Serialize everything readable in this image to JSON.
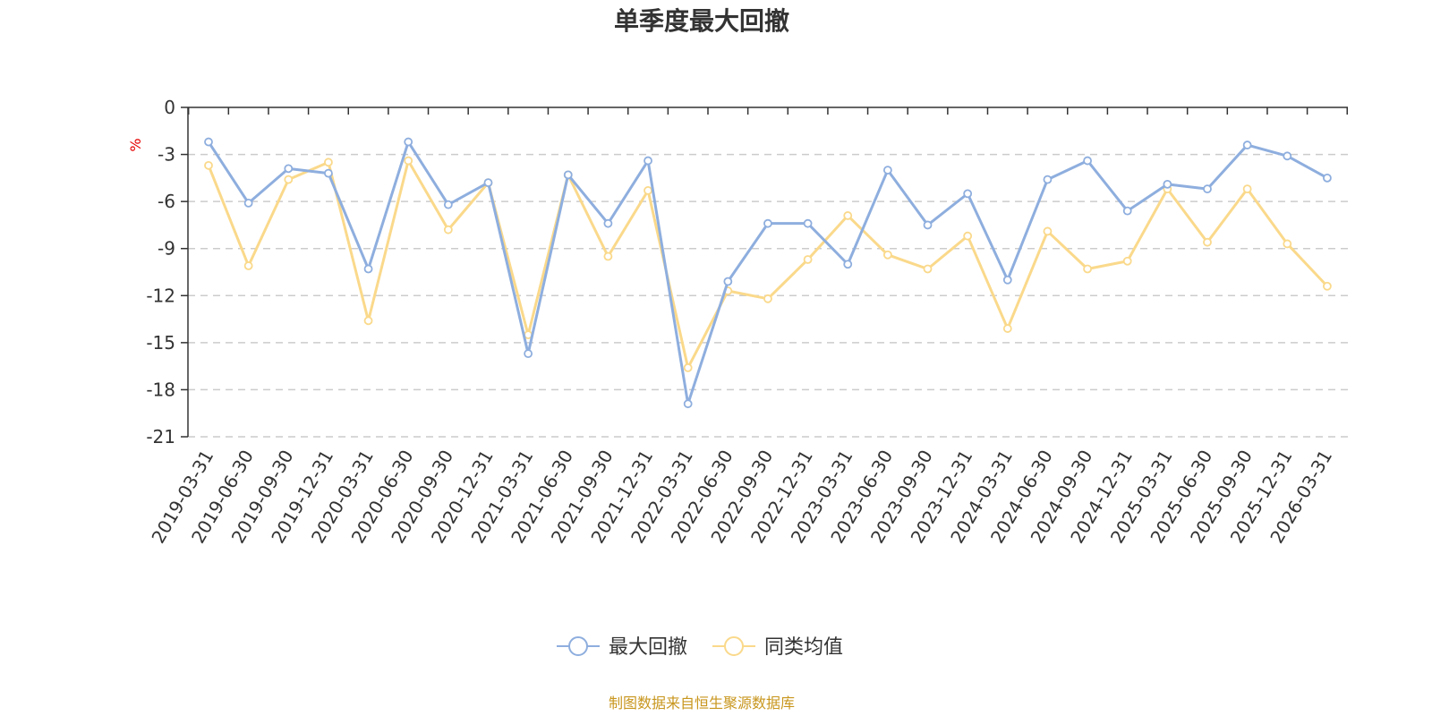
{
  "chart_data": {
    "type": "line",
    "title": "单季度最大回撤",
    "y_unit": "%",
    "ylim": [
      -21,
      0
    ],
    "y_ticks": [
      "0",
      "-3",
      "-6",
      "-9",
      "-12",
      "-15",
      "-18",
      "-21"
    ],
    "grid": "horizontal dashed",
    "legend_position": "bottom",
    "categories": [
      "2019-03-31",
      "2019-06-30",
      "2019-09-30",
      "2019-12-31",
      "2020-03-31",
      "2020-06-30",
      "2020-09-30",
      "2020-12-31",
      "2021-03-31",
      "2021-06-30",
      "2021-09-30",
      "2021-12-31",
      "2022-03-31",
      "2022-06-30",
      "2022-09-30",
      "2022-12-31",
      "2023-03-31",
      "2023-06-30",
      "2023-09-30",
      "2023-12-31",
      "2024-03-31",
      "2024-06-30",
      "2024-09-30",
      "2024-12-31",
      "2025-03-31",
      "2025-06-30",
      "2025-09-30",
      "2025-12-31",
      "2026-03-31"
    ],
    "series": [
      {
        "name": "最大回撤",
        "color": "#8eaede",
        "values": [
          -2.2,
          -6.1,
          -3.9,
          -4.2,
          -10.3,
          -2.2,
          -6.2,
          -4.8,
          -15.7,
          -4.3,
          -7.4,
          -3.4,
          -18.9,
          -11.1,
          -7.4,
          -7.4,
          -10.0,
          -4.0,
          -7.5,
          -5.5,
          -11.0,
          -4.6,
          -3.4,
          -6.6,
          -4.9,
          -5.2,
          -2.4,
          -3.1,
          -4.5
        ]
      },
      {
        "name": "同类均值",
        "color": "#fad98b",
        "values": [
          -3.7,
          -10.1,
          -4.6,
          -3.5,
          -13.6,
          -3.4,
          -7.8,
          -4.8,
          -14.5,
          -4.3,
          -9.5,
          -5.3,
          -16.6,
          -11.7,
          -12.2,
          -9.7,
          -6.9,
          -9.4,
          -10.3,
          -8.2,
          -14.1,
          -7.9,
          -10.3,
          -9.8,
          -5.2,
          -8.6,
          -5.2,
          -8.7,
          -11.4
        ]
      }
    ]
  },
  "source_note": "制图数据来自恒生聚源数据库",
  "colors": {
    "unit_label": "#e60000",
    "source_note": "#c8961e",
    "axis": "#333333",
    "grid": "#cccccc"
  }
}
